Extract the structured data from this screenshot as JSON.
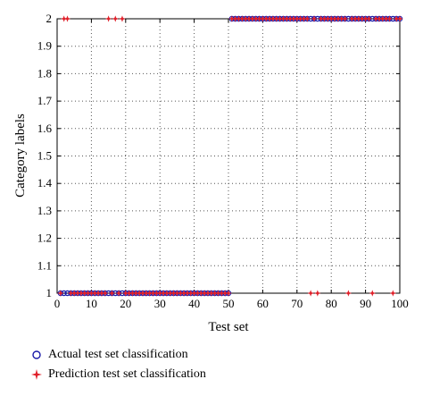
{
  "chart_data": {
    "type": "scatter",
    "xlabel": "Test set",
    "ylabel": "Category labels",
    "xlim": [
      0,
      100
    ],
    "ylim": [
      1,
      2
    ],
    "xticks": [
      "0",
      "10",
      "20",
      "30",
      "40",
      "50",
      "60",
      "70",
      "80",
      "90",
      "100"
    ],
    "yticks": [
      "1",
      "1.1",
      "1.2",
      "1.3",
      "1.4",
      "1.5",
      "1.6",
      "1.7",
      "1.8",
      "1.9",
      "2"
    ],
    "grid": true,
    "legend_position": "bottom",
    "series": [
      {
        "name": "Actual test set classification",
        "marker": "circle",
        "color": "#1a1aa8",
        "x": [
          1,
          2,
          3,
          4,
          5,
          6,
          7,
          8,
          9,
          10,
          11,
          12,
          13,
          14,
          15,
          16,
          17,
          18,
          19,
          20,
          21,
          22,
          23,
          24,
          25,
          26,
          27,
          28,
          29,
          30,
          31,
          32,
          33,
          34,
          35,
          36,
          37,
          38,
          39,
          40,
          41,
          42,
          43,
          44,
          45,
          46,
          47,
          48,
          49,
          50,
          51,
          52,
          53,
          54,
          55,
          56,
          57,
          58,
          59,
          60,
          61,
          62,
          63,
          64,
          65,
          66,
          67,
          68,
          69,
          70,
          71,
          72,
          73,
          74,
          75,
          76,
          77,
          78,
          79,
          80,
          81,
          82,
          83,
          84,
          85,
          86,
          87,
          88,
          89,
          90,
          91,
          92,
          93,
          94,
          95,
          96,
          97,
          98,
          99,
          100
        ],
        "y": [
          1,
          1,
          1,
          1,
          1,
          1,
          1,
          1,
          1,
          1,
          1,
          1,
          1,
          1,
          1,
          1,
          1,
          1,
          1,
          1,
          1,
          1,
          1,
          1,
          1,
          1,
          1,
          1,
          1,
          1,
          1,
          1,
          1,
          1,
          1,
          1,
          1,
          1,
          1,
          1,
          1,
          1,
          1,
          1,
          1,
          1,
          1,
          1,
          1,
          1,
          2,
          2,
          2,
          2,
          2,
          2,
          2,
          2,
          2,
          2,
          2,
          2,
          2,
          2,
          2,
          2,
          2,
          2,
          2,
          2,
          2,
          2,
          2,
          2,
          2,
          2,
          2,
          2,
          2,
          2,
          2,
          2,
          2,
          2,
          2,
          2,
          2,
          2,
          2,
          2,
          2,
          2,
          2,
          2,
          2,
          2,
          2,
          2,
          2,
          2
        ]
      },
      {
        "name": "Prediction test set classification",
        "marker": "star",
        "color": "#e0202a",
        "x": [
          1,
          2,
          3,
          4,
          5,
          6,
          7,
          8,
          9,
          10,
          11,
          12,
          13,
          14,
          15,
          16,
          17,
          18,
          19,
          20,
          21,
          22,
          23,
          24,
          25,
          26,
          27,
          28,
          29,
          30,
          31,
          32,
          33,
          34,
          35,
          36,
          37,
          38,
          39,
          40,
          41,
          42,
          43,
          44,
          45,
          46,
          47,
          48,
          49,
          50,
          51,
          52,
          53,
          54,
          55,
          56,
          57,
          58,
          59,
          60,
          61,
          62,
          63,
          64,
          65,
          66,
          67,
          68,
          69,
          70,
          71,
          72,
          73,
          74,
          75,
          76,
          77,
          78,
          79,
          80,
          81,
          82,
          83,
          84,
          85,
          86,
          87,
          88,
          89,
          90,
          91,
          92,
          93,
          94,
          95,
          96,
          97,
          98,
          99,
          100
        ],
        "y": [
          1,
          2,
          2,
          1,
          1,
          1,
          1,
          1,
          1,
          1,
          1,
          1,
          1,
          1,
          2,
          1,
          2,
          1,
          2,
          1,
          1,
          1,
          1,
          1,
          1,
          1,
          1,
          1,
          1,
          1,
          1,
          1,
          1,
          1,
          1,
          1,
          1,
          1,
          1,
          1,
          1,
          1,
          1,
          1,
          1,
          1,
          1,
          1,
          1,
          1,
          2,
          2,
          2,
          2,
          2,
          2,
          2,
          2,
          2,
          2,
          2,
          2,
          2,
          2,
          2,
          2,
          2,
          2,
          2,
          2,
          2,
          2,
          2,
          1,
          2,
          1,
          2,
          2,
          2,
          2,
          2,
          2,
          2,
          2,
          1,
          2,
          2,
          2,
          2,
          2,
          2,
          1,
          2,
          2,
          2,
          2,
          2,
          1,
          2,
          2
        ]
      }
    ]
  }
}
